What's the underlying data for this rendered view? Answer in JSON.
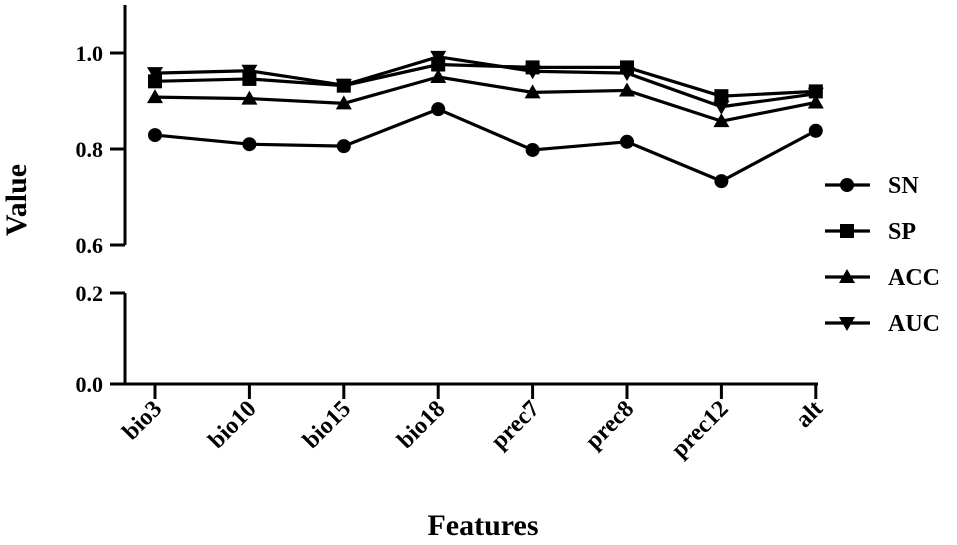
{
  "chart_data": {
    "type": "line",
    "xlabel": "Features",
    "ylabel": "Value",
    "categories": [
      "bio3",
      "bio10",
      "bio15",
      "bio18",
      "prec7",
      "prec8",
      "prec12",
      "alt"
    ],
    "y_axis": {
      "broken": true,
      "lower_segment": [
        0.0,
        0.2
      ],
      "upper_segment": [
        0.6,
        1.1
      ],
      "ticks": [
        "0.0",
        "0.2",
        "0.6",
        "0.8",
        "1.0"
      ]
    },
    "series": [
      {
        "name": "SN",
        "marker": "circle",
        "values": [
          0.829,
          0.81,
          0.806,
          0.883,
          0.798,
          0.815,
          0.733,
          0.838
        ]
      },
      {
        "name": "SP",
        "marker": "square",
        "values": [
          0.941,
          0.946,
          0.932,
          0.976,
          0.97,
          0.97,
          0.91,
          0.92
        ]
      },
      {
        "name": "ACC",
        "marker": "triangle-up",
        "values": [
          0.908,
          0.905,
          0.895,
          0.95,
          0.918,
          0.922,
          0.858,
          0.897
        ]
      },
      {
        "name": "AUC",
        "marker": "triangle-down",
        "values": [
          0.958,
          0.963,
          0.933,
          0.992,
          0.962,
          0.958,
          0.888,
          0.915
        ]
      }
    ],
    "legend": "right",
    "grid": false
  }
}
